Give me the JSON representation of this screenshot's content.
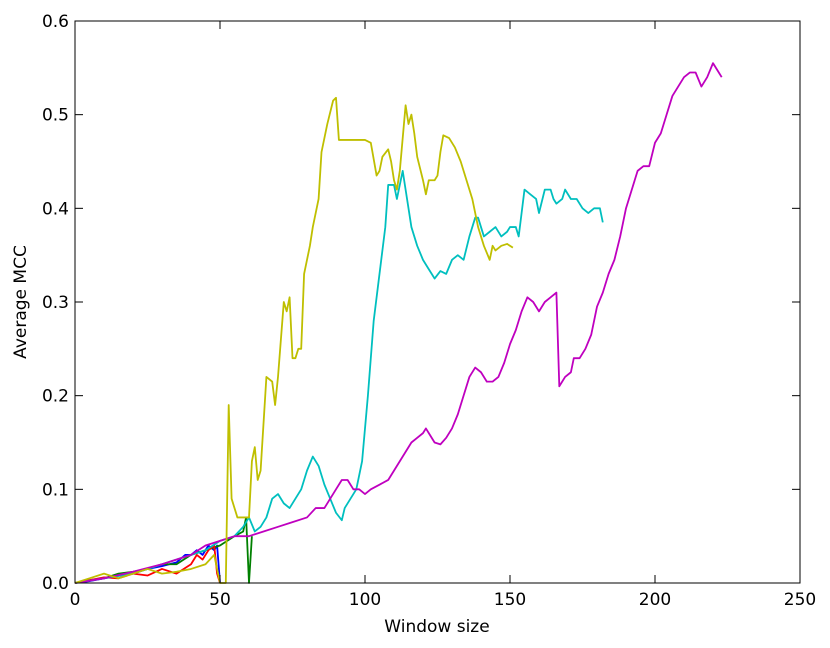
{
  "chart_data": {
    "type": "line",
    "x_label": "Window size",
    "y_label": "Average MCC",
    "xlim": [
      0,
      250
    ],
    "xticks": [
      0,
      50,
      100,
      150,
      200,
      250
    ],
    "ylim": [
      0,
      0.6
    ],
    "yticks": [
      {
        "value": 0,
        "label": "0.0"
      },
      0.1,
      0.2,
      0.3,
      0.4,
      0.5,
      0.6
    ],
    "series": [
      {
        "color": "#0000ff",
        "x": [
          0,
          5,
          10,
          15,
          20,
          25,
          30,
          35,
          38,
          40,
          42,
          44,
          46,
          48,
          49,
          50
        ],
        "values": [
          0,
          0.002,
          0.005,
          0.008,
          0.01,
          0.015,
          0.018,
          0.022,
          0.03,
          0.03,
          0.035,
          0.03,
          0.04,
          0.035,
          0.04,
          0
        ]
      },
      {
        "color": "#008000",
        "x": [
          0,
          5,
          10,
          15,
          20,
          25,
          30,
          35,
          40,
          45,
          50,
          55,
          58,
          59,
          60,
          61
        ],
        "values": [
          0,
          0.003,
          0.005,
          0.01,
          0.012,
          0.015,
          0.02,
          0.02,
          0.03,
          0.035,
          0.04,
          0.05,
          0.055,
          0.07,
          0,
          0.05
        ]
      },
      {
        "color": "#ff0000",
        "x": [
          0,
          5,
          10,
          15,
          20,
          25,
          30,
          35,
          40,
          42,
          44,
          46,
          48,
          49,
          50
        ],
        "values": [
          0,
          0.003,
          0.006,
          0.005,
          0.01,
          0.008,
          0.015,
          0.01,
          0.02,
          0.03,
          0.025,
          0.035,
          0.04,
          0.01,
          0
        ]
      },
      {
        "color": "#00bfbf",
        "x": [
          0,
          10,
          20,
          30,
          40,
          45,
          50,
          55,
          58,
          60,
          62,
          64,
          66,
          68,
          70,
          72,
          74,
          76,
          78,
          80,
          82,
          84,
          86,
          88,
          90,
          92,
          93,
          95,
          97,
          99,
          101,
          103,
          105,
          107,
          108,
          110,
          111,
          113,
          114,
          116,
          118,
          120,
          122,
          123,
          124,
          126,
          128,
          130,
          132,
          134,
          136,
          138,
          139,
          141,
          143,
          145,
          147,
          149,
          150,
          152,
          153,
          155,
          157,
          159,
          160,
          162,
          164,
          165,
          166,
          168,
          169,
          171,
          173,
          175,
          177,
          179,
          181,
          182
        ],
        "values": [
          0,
          0.005,
          0.01,
          0.02,
          0.03,
          0.035,
          0.045,
          0.05,
          0.06,
          0.07,
          0.055,
          0.06,
          0.07,
          0.09,
          0.095,
          0.085,
          0.08,
          0.09,
          0.1,
          0.12,
          0.135,
          0.125,
          0.105,
          0.09,
          0.075,
          0.067,
          0.08,
          0.09,
          0.1,
          0.13,
          0.2,
          0.28,
          0.33,
          0.38,
          0.425,
          0.425,
          0.41,
          0.44,
          0.42,
          0.38,
          0.36,
          0.345,
          0.335,
          0.33,
          0.325,
          0.333,
          0.33,
          0.345,
          0.35,
          0.345,
          0.37,
          0.39,
          0.39,
          0.37,
          0.375,
          0.38,
          0.37,
          0.375,
          0.38,
          0.38,
          0.37,
          0.42,
          0.415,
          0.41,
          0.395,
          0.42,
          0.42,
          0.41,
          0.405,
          0.41,
          0.42,
          0.41,
          0.41,
          0.4,
          0.395,
          0.4,
          0.4,
          0.385
        ]
      },
      {
        "color": "#bf00bf",
        "x": [
          0,
          10,
          20,
          30,
          40,
          45,
          50,
          55,
          60,
          65,
          70,
          75,
          80,
          83,
          86,
          88,
          90,
          92,
          94,
          96,
          98,
          100,
          102,
          105,
          108,
          110,
          112,
          114,
          116,
          118,
          120,
          121,
          122,
          124,
          126,
          128,
          130,
          132,
          134,
          136,
          138,
          140,
          142,
          144,
          146,
          148,
          150,
          152,
          154,
          156,
          158,
          160,
          162,
          164,
          166,
          167,
          169,
          171,
          172,
          174,
          176,
          178,
          180,
          182,
          184,
          186,
          188,
          190,
          192,
          194,
          196,
          198,
          200,
          202,
          204,
          206,
          208,
          210,
          212,
          214,
          216,
          218,
          220,
          222,
          223
        ],
        "values": [
          0,
          0.005,
          0.012,
          0.02,
          0.03,
          0.04,
          0.045,
          0.05,
          0.05,
          0.055,
          0.06,
          0.065,
          0.07,
          0.08,
          0.08,
          0.09,
          0.1,
          0.11,
          0.11,
          0.1,
          0.1,
          0.095,
          0.1,
          0.105,
          0.11,
          0.12,
          0.13,
          0.14,
          0.15,
          0.155,
          0.16,
          0.165,
          0.16,
          0.15,
          0.148,
          0.155,
          0.165,
          0.18,
          0.2,
          0.22,
          0.23,
          0.225,
          0.215,
          0.215,
          0.22,
          0.235,
          0.255,
          0.27,
          0.29,
          0.305,
          0.3,
          0.29,
          0.3,
          0.305,
          0.31,
          0.21,
          0.22,
          0.225,
          0.24,
          0.24,
          0.25,
          0.265,
          0.295,
          0.31,
          0.33,
          0.345,
          0.37,
          0.4,
          0.42,
          0.44,
          0.445,
          0.445,
          0.47,
          0.48,
          0.5,
          0.52,
          0.53,
          0.54,
          0.545,
          0.545,
          0.53,
          0.54,
          0.555,
          0.545,
          0.54
        ]
      },
      {
        "color": "#bfbf00",
        "x": [
          0,
          5,
          10,
          15,
          20,
          25,
          30,
          35,
          40,
          45,
          48,
          50,
          52,
          53,
          54,
          56,
          58,
          60,
          61,
          62,
          63,
          64,
          66,
          68,
          69,
          70,
          72,
          73,
          74,
          75,
          76,
          77,
          78,
          79,
          81,
          82,
          84,
          85,
          87,
          89,
          90,
          91,
          95,
          100,
          102,
          104,
          105,
          106,
          108,
          109,
          110,
          111,
          112,
          114,
          115,
          116,
          117,
          118,
          120,
          121,
          122,
          124,
          125,
          126,
          127,
          129,
          131,
          133,
          135,
          137,
          139,
          141,
          143,
          144,
          145,
          147,
          149,
          151
        ],
        "values": [
          0,
          0.005,
          0.01,
          0.005,
          0.01,
          0.015,
          0.01,
          0.012,
          0.015,
          0.02,
          0.03,
          0,
          0,
          0.19,
          0.09,
          0.07,
          0.07,
          0.07,
          0.13,
          0.145,
          0.11,
          0.12,
          0.22,
          0.215,
          0.19,
          0.22,
          0.3,
          0.29,
          0.305,
          0.24,
          0.24,
          0.25,
          0.25,
          0.33,
          0.36,
          0.38,
          0.41,
          0.46,
          0.49,
          0.515,
          0.518,
          0.473,
          0.473,
          0.473,
          0.47,
          0.435,
          0.44,
          0.455,
          0.463,
          0.45,
          0.43,
          0.42,
          0.44,
          0.51,
          0.49,
          0.5,
          0.48,
          0.455,
          0.43,
          0.415,
          0.43,
          0.43,
          0.435,
          0.46,
          0.478,
          0.475,
          0.465,
          0.45,
          0.43,
          0.41,
          0.38,
          0.36,
          0.345,
          0.36,
          0.355,
          0.36,
          0.362,
          0.358
        ]
      }
    ]
  }
}
